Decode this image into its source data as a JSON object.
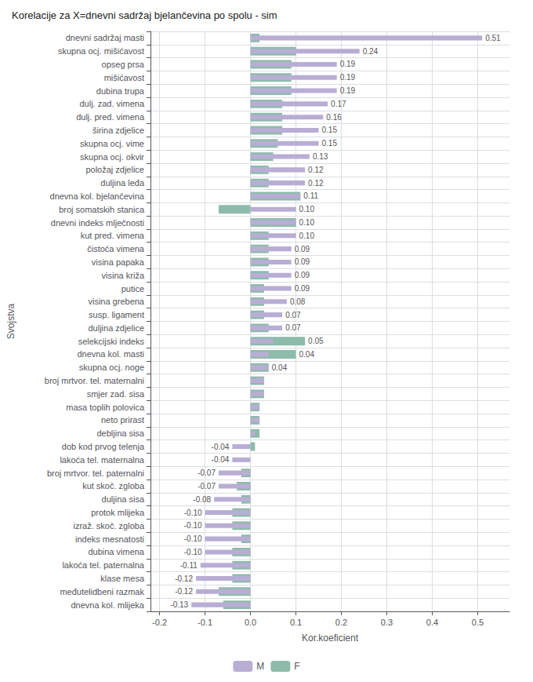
{
  "chart_data": {
    "type": "bar",
    "orientation": "horizontal",
    "title": "Korelacije za X=dnevni sadržaj bjelančevina po spolu - sim",
    "xlabel": "Kor.koeficient",
    "ylabel": "Svojstva",
    "categories": [
      "dnevni sadržaj masti",
      "skupna ocj. mišićavost",
      "opseg prsa",
      "mišićavost",
      "dubina trupa",
      "dulj. zad. vimena",
      "dulj. pred. vimena",
      "širina zdjelice",
      "skupna ocj. vime",
      "skupna ocj. okvir",
      "položaj zdjelice",
      "duljina leđa",
      "dnevna kol. bjelančevina",
      "broj somatskih stanica",
      "dnevni indeks mlječnosti",
      "kut pred. vimena",
      "čistоća vimena",
      "visina papaka",
      "visina križa",
      "putice",
      "visina grebena",
      "susp. ligament",
      "duljina zdjelice",
      "selekcijski indeks",
      "dnevna kol. masti",
      "skupna ocj. noge",
      "broj mrtvor. tel. maternalni",
      "smjer zad. sisa",
      "masa toplih polovica",
      "neto prirast",
      "debljina sisa",
      "dob kod prvog telenja",
      "lakoća tel. maternalna",
      "broj mrtvor. tel. paternalni",
      "kut skoč. zgloba",
      "duljina sisa",
      "protok mlijeka",
      "izraž. skoč. zgloba",
      "indeks mesnatosti",
      "dubina vimena",
      "lakoća tel. paternalna",
      "klase mesa",
      "međutelidbeni razmak",
      "dnevna kol. mlijeka"
    ],
    "series": [
      {
        "name": "M",
        "color": "#b8aed4",
        "values": [
          0.51,
          0.24,
          0.19,
          0.19,
          0.19,
          0.17,
          0.16,
          0.15,
          0.15,
          0.13,
          0.12,
          0.12,
          0.11,
          0.1,
          0.1,
          0.1,
          0.09,
          0.09,
          0.09,
          0.09,
          0.08,
          0.07,
          0.07,
          0.05,
          0.04,
          0.04,
          0.03,
          0.03,
          0.02,
          0.02,
          0.01,
          -0.04,
          -0.04,
          -0.07,
          -0.07,
          -0.08,
          -0.1,
          -0.1,
          -0.1,
          -0.1,
          -0.11,
          -0.12,
          -0.12,
          -0.13
        ],
        "value_labels": [
          "0.51",
          "0.24",
          "0.19",
          "0.19",
          "0.19",
          "0.17",
          "0.16",
          "0.15",
          "0.15",
          "0.13",
          "0.12",
          "0.12",
          "0.11",
          "0.10",
          "0.10",
          "0.10",
          "0.09",
          "0.09",
          "0.09",
          "0.09",
          "0.08",
          "0.07",
          "0.07",
          "0.05",
          "0.04",
          "0.04",
          null,
          null,
          null,
          null,
          null,
          "-0.04",
          "-0.04",
          "-0.07",
          "-0.07",
          "-0.08",
          "-0.10",
          "-0.10",
          "-0.10",
          "-0.10",
          "-0.11",
          "-0.12",
          "-0.12",
          "-0.13"
        ]
      },
      {
        "name": "F",
        "color": "#8dbcaa",
        "values": [
          0.02,
          0.1,
          0.09,
          0.09,
          0.09,
          0.07,
          0.07,
          0.07,
          0.06,
          0.05,
          0.04,
          0.04,
          0.11,
          -0.07,
          0.1,
          0.04,
          0.04,
          0.04,
          0.04,
          0.03,
          0.03,
          0.03,
          0.04,
          0.12,
          0.1,
          0.04,
          0.03,
          0.03,
          0.02,
          0.02,
          0.02,
          0.01,
          0.0,
          -0.02,
          -0.03,
          -0.02,
          -0.04,
          -0.04,
          -0.02,
          -0.04,
          -0.04,
          -0.04,
          -0.07,
          -0.06
        ]
      }
    ],
    "xlim": [
      -0.22,
      0.57
    ],
    "xticks": [
      -0.2,
      -0.1,
      {
        "value": 0,
        "label": "0.0"
      },
      0.1,
      0.2,
      0.3,
      0.4,
      0.5
    ],
    "grid": true,
    "legend": "bottom"
  }
}
